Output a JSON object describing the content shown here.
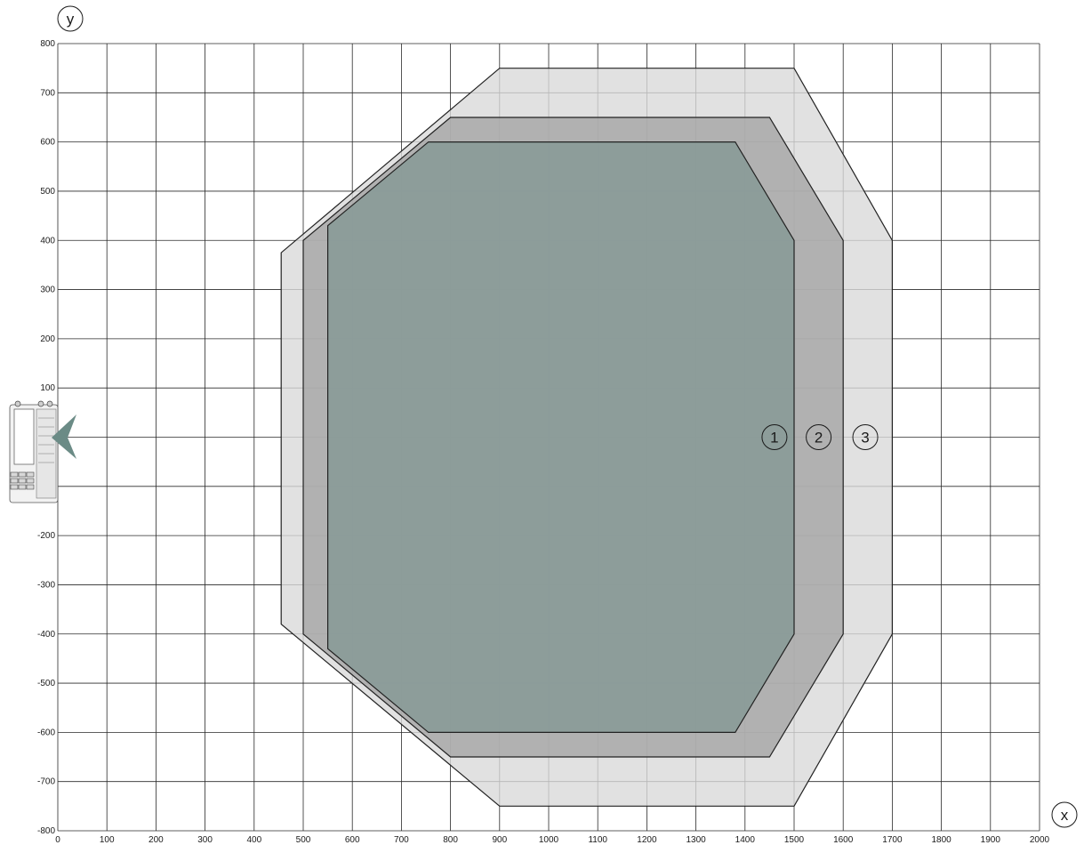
{
  "chart_data": {
    "type": "area",
    "axes": {
      "x_label": "x",
      "y_label": "y",
      "xlim": [
        0,
        2000
      ],
      "ylim": [
        -800,
        800
      ],
      "x_ticks": [
        0,
        100,
        200,
        300,
        400,
        500,
        600,
        700,
        800,
        900,
        1000,
        1100,
        1200,
        1300,
        1400,
        1500,
        1600,
        1700,
        1800,
        1900,
        2000
      ],
      "y_ticks": [
        800,
        700,
        600,
        500,
        400,
        300,
        200,
        100,
        0,
        -100,
        -200,
        -300,
        -400,
        -500,
        -600,
        -700,
        -800
      ],
      "grid": true
    },
    "zones": [
      {
        "id": "3",
        "label": "3",
        "fill": "#d9d9d9",
        "points": [
          [
            900,
            750
          ],
          [
            1500,
            750
          ],
          [
            1700,
            400
          ],
          [
            1700,
            -400
          ],
          [
            1500,
            -750
          ],
          [
            900,
            -750
          ],
          [
            455,
            -380
          ],
          [
            455,
            375
          ]
        ],
        "label_pos": [
          1645,
          0
        ]
      },
      {
        "id": "2",
        "label": "2",
        "fill": "#a5a5a5",
        "points": [
          [
            800,
            650
          ],
          [
            1450,
            650
          ],
          [
            1600,
            400
          ],
          [
            1600,
            -400
          ],
          [
            1450,
            -650
          ],
          [
            800,
            -650
          ],
          [
            500,
            -400
          ],
          [
            500,
            400
          ]
        ],
        "label_pos": [
          1550,
          0
        ]
      },
      {
        "id": "1",
        "label": "1",
        "fill": "#849995",
        "points": [
          [
            755,
            600
          ],
          [
            1380,
            600
          ],
          [
            1500,
            400
          ],
          [
            1500,
            -400
          ],
          [
            1380,
            -600
          ],
          [
            755,
            -600
          ],
          [
            550,
            -430
          ],
          [
            550,
            430
          ]
        ],
        "label_pos": [
          1460,
          0
        ]
      }
    ]
  },
  "device": {
    "icon": "scanner-device-icon",
    "body_color": "#f2f2f2",
    "beam_color": "#6b8b86"
  }
}
